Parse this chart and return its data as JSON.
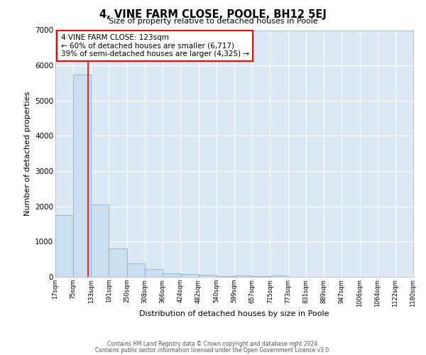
{
  "title": "4, VINE FARM CLOSE, POOLE, BH12 5EJ",
  "subtitle": "Size of property relative to detached houses in Poole",
  "xlabel": "Distribution of detached houses by size in Poole",
  "ylabel": "Number of detached properties",
  "bar_color": "#ccdff0",
  "bar_edge_color": "#7fb3d3",
  "bg_color": "#dce9f5",
  "grid_color": "#ffffff",
  "fig_bg_color": "#ffffff",
  "red_line_x": 123,
  "annotation_title": "4 VINE FARM CLOSE: 123sqm",
  "annotation_line1": "← 60% of detached houses are smaller (6,717)",
  "annotation_line2": "39% of semi-detached houses are larger (4,325) →",
  "bin_edges": [
    17,
    75,
    133,
    191,
    250,
    308,
    366,
    424,
    482,
    540,
    599,
    657,
    715,
    773,
    831,
    889,
    947,
    1006,
    1064,
    1122,
    1180
  ],
  "bar_heights": [
    1750,
    5750,
    2050,
    800,
    375,
    230,
    110,
    90,
    65,
    30,
    50,
    15,
    50,
    0,
    0,
    0,
    0,
    0,
    0,
    0
  ],
  "ylim": [
    0,
    7000
  ],
  "yticks": [
    0,
    1000,
    2000,
    3000,
    4000,
    5000,
    6000,
    7000
  ],
  "footer1": "Contains HM Land Registry data © Crown copyright and database right 2024.",
  "footer2": "Contains public sector information licensed under the Open Government Licence v3.0."
}
